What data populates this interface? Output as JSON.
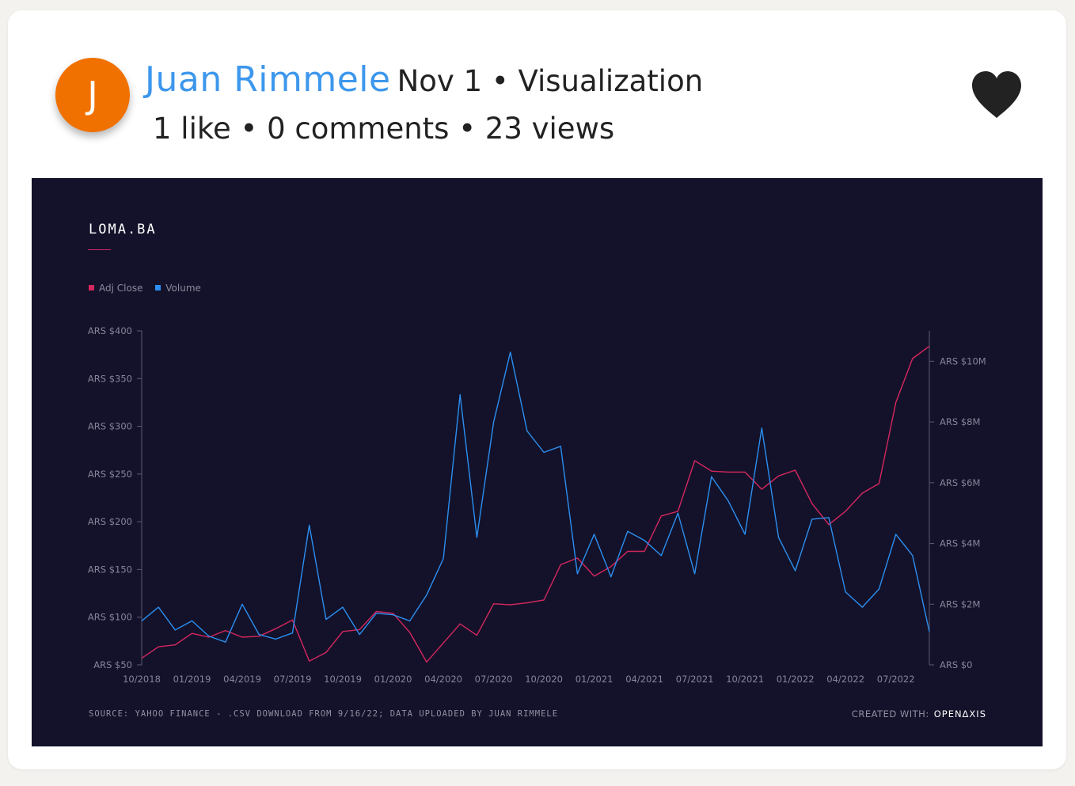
{
  "post": {
    "avatar_letter": "J",
    "author": "Juan Rimmele",
    "date_category": "Nov 1 • Visualization",
    "stats": "1 like • 0 comments • 23 views",
    "like_icon": "heart-icon",
    "colors": {
      "avatar": "#f07100",
      "author": "#3d97ec"
    }
  },
  "viz": {
    "footer_source": "SOURCE: YAHOO FINANCE - .CSV DOWNLOAD FROM 9/16/22; DATA UPLOADED BY JUAN RIMMELE",
    "created_label": "CREATED WITH:",
    "created_brand": "OPENΔXIS",
    "background": "#13122a"
  },
  "chart_data": {
    "type": "line",
    "title": "LOMA.BA",
    "legend_position": "top-left",
    "grid": false,
    "x": [
      "10/2018",
      "11/2018",
      "12/2018",
      "01/2019",
      "02/2019",
      "03/2019",
      "04/2019",
      "05/2019",
      "06/2019",
      "07/2019",
      "08/2019",
      "09/2019",
      "10/2019",
      "11/2019",
      "12/2019",
      "01/2020",
      "02/2020",
      "03/2020",
      "04/2020",
      "05/2020",
      "06/2020",
      "07/2020",
      "08/2020",
      "09/2020",
      "10/2020",
      "11/2020",
      "12/2020",
      "01/2021",
      "02/2021",
      "03/2021",
      "04/2021",
      "05/2021",
      "06/2021",
      "07/2021",
      "08/2021",
      "09/2021",
      "10/2021",
      "11/2021",
      "12/2021",
      "01/2022",
      "02/2022",
      "03/2022",
      "04/2022",
      "05/2022",
      "06/2022",
      "07/2022",
      "08/2022",
      "09/2022"
    ],
    "x_tick_labels": [
      "10/2018",
      "01/2019",
      "04/2019",
      "07/2019",
      "10/2019",
      "01/2020",
      "04/2020",
      "07/2020",
      "10/2020",
      "01/2021",
      "04/2021",
      "07/2021",
      "10/2021",
      "01/2022",
      "04/2022",
      "07/2022"
    ],
    "y_left": {
      "ylim": [
        50,
        400
      ],
      "ticks": [
        50,
        100,
        150,
        200,
        250,
        300,
        350,
        400
      ],
      "tick_labels": [
        "ARS $50",
        "ARS $100",
        "ARS $150",
        "ARS $200",
        "ARS $250",
        "ARS $300",
        "ARS $350",
        "ARS $400"
      ]
    },
    "y_right": {
      "ylim": [
        0,
        11000000
      ],
      "ticks": [
        0,
        2000000,
        4000000,
        6000000,
        8000000,
        10000000
      ],
      "tick_labels": [
        "ARS $0",
        "ARS $2M",
        "ARS $4M",
        "ARS $6M",
        "ARS $8M",
        "ARS $10M"
      ]
    },
    "series": [
      {
        "name": "Adj Close",
        "axis": "left",
        "color": "#d6275e",
        "values": [
          57,
          69,
          71,
          83,
          79,
          86,
          79,
          80,
          88,
          97,
          54,
          63,
          85,
          87,
          106,
          104,
          84,
          53,
          73,
          93,
          81,
          114,
          113,
          115,
          118,
          155,
          162,
          143,
          153,
          169,
          169,
          206,
          211,
          264,
          253,
          252,
          252,
          234,
          248,
          254,
          219,
          197,
          211,
          230,
          240,
          325,
          371,
          384
        ]
      },
      {
        "name": "Volume",
        "axis": "right",
        "color": "#2c8ef0",
        "values": [
          1450000,
          1900000,
          1150000,
          1450000,
          950000,
          750000,
          2000000,
          1000000,
          850000,
          1050000,
          4600000,
          1500000,
          1900000,
          1000000,
          1700000,
          1650000,
          1450000,
          2300000,
          3500000,
          8900000,
          4200000,
          8000000,
          10300000,
          7700000,
          7000000,
          7200000,
          3000000,
          4300000,
          2900000,
          4400000,
          4100000,
          3600000,
          5000000,
          3000000,
          6200000,
          5400000,
          4300000,
          7800000,
          4200000,
          3100000,
          4800000,
          4850000,
          2400000,
          1900000,
          2500000,
          4300000,
          3600000,
          1100000
        ]
      }
    ]
  }
}
